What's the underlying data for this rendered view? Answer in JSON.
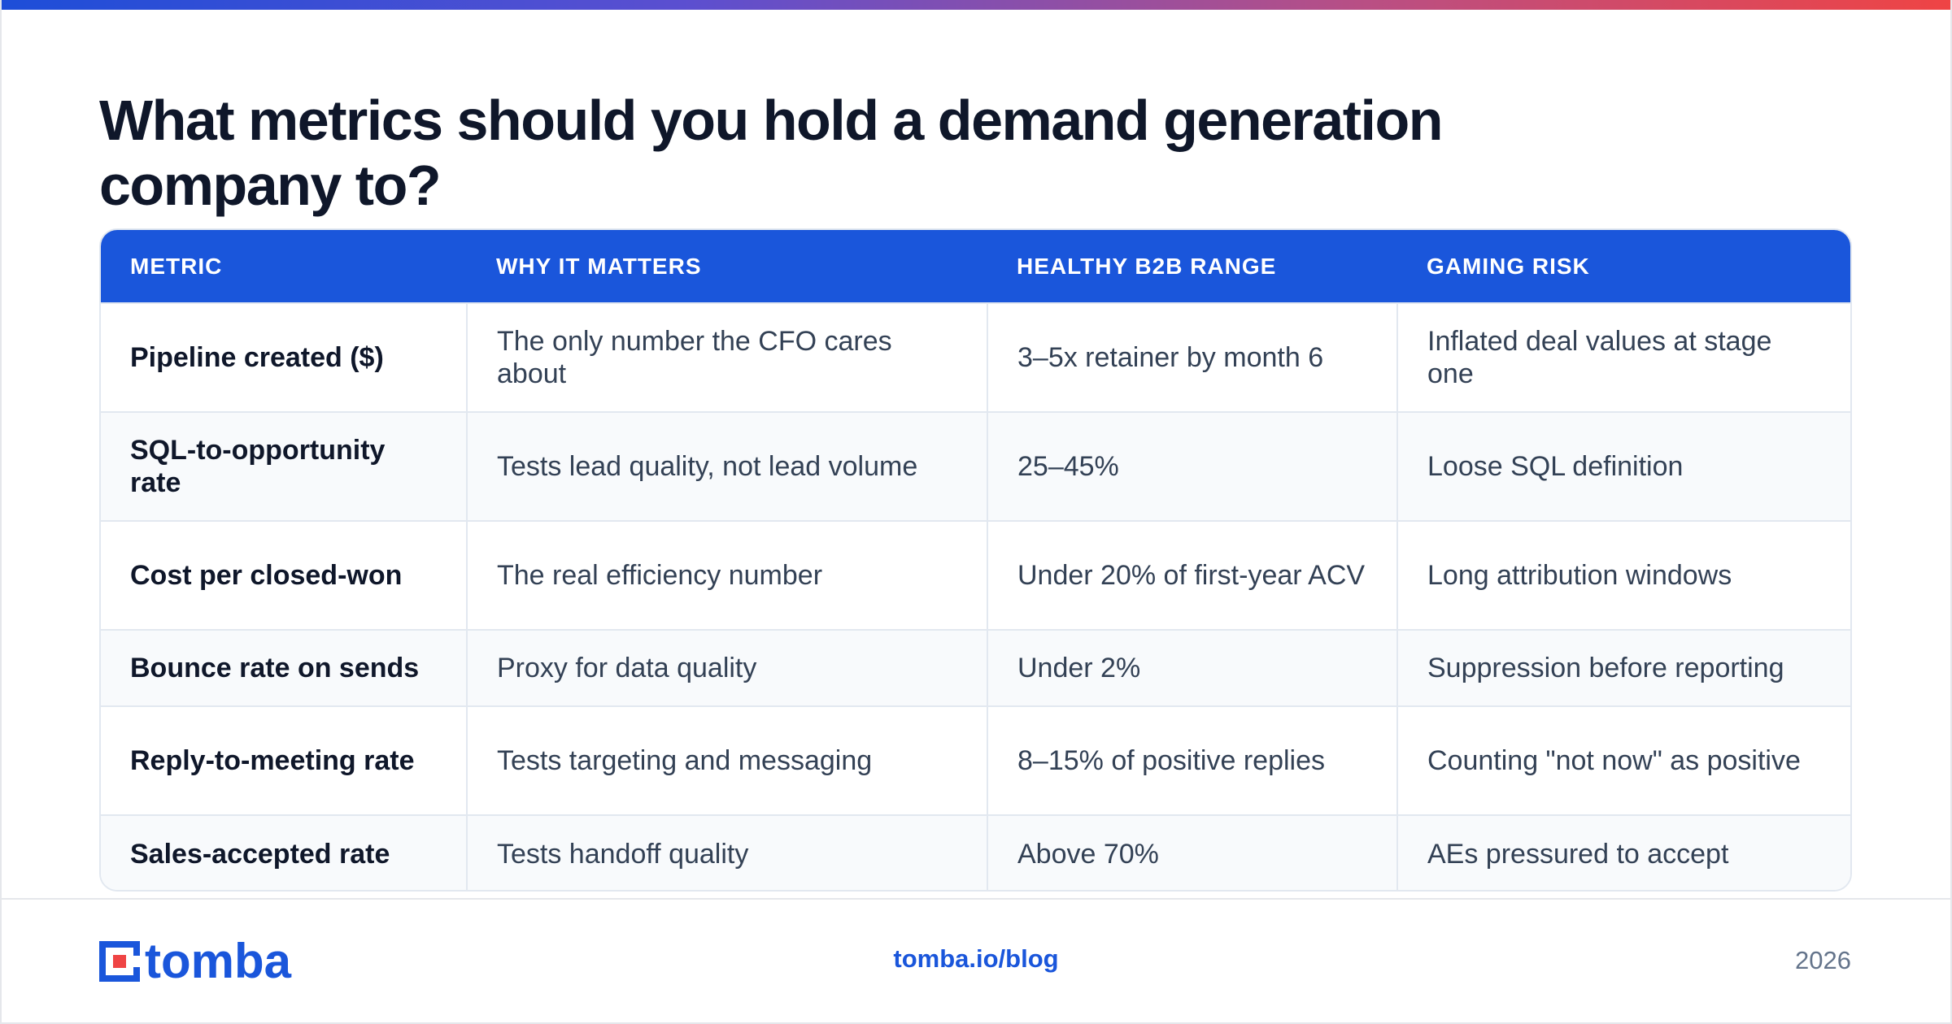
{
  "title": "What metrics should you hold a demand generation company to?",
  "colors": {
    "accent": "#1a56db",
    "header_bg": "#1a56db",
    "gradient_start": "#1d4ed8",
    "gradient_end": "#ef4444"
  },
  "table": {
    "headers": [
      "METRIC",
      "WHY IT MATTERS",
      "HEALTHY B2B RANGE",
      "GAMING RISK"
    ],
    "rows": [
      [
        "Pipeline created ($)",
        "The only number the CFO cares about",
        "3–5x retainer by month 6",
        "Inflated deal values at stage one"
      ],
      [
        "SQL-to-opportunity rate",
        "Tests lead quality, not lead volume",
        "25–45%",
        "Loose SQL definition"
      ],
      [
        "Cost per closed-won",
        "The real efficiency number",
        "Under 20% of first-year ACV",
        "Long attribution windows"
      ],
      [
        "Bounce rate on sends",
        "Proxy for data quality",
        "Under 2%",
        "Suppression before reporting"
      ],
      [
        "Reply-to-meeting rate",
        "Tests targeting and messaging",
        "8–15% of positive replies",
        "Counting \"not now\" as positive"
      ],
      [
        "Sales-accepted rate",
        "Tests handoff quality",
        "Above 70%",
        "AEs pressured to accept"
      ]
    ]
  },
  "footer": {
    "logo_text": "tomba",
    "logo_icon": "tomba-logo-icon",
    "site": "tomba.io/blog",
    "year": "2026"
  }
}
